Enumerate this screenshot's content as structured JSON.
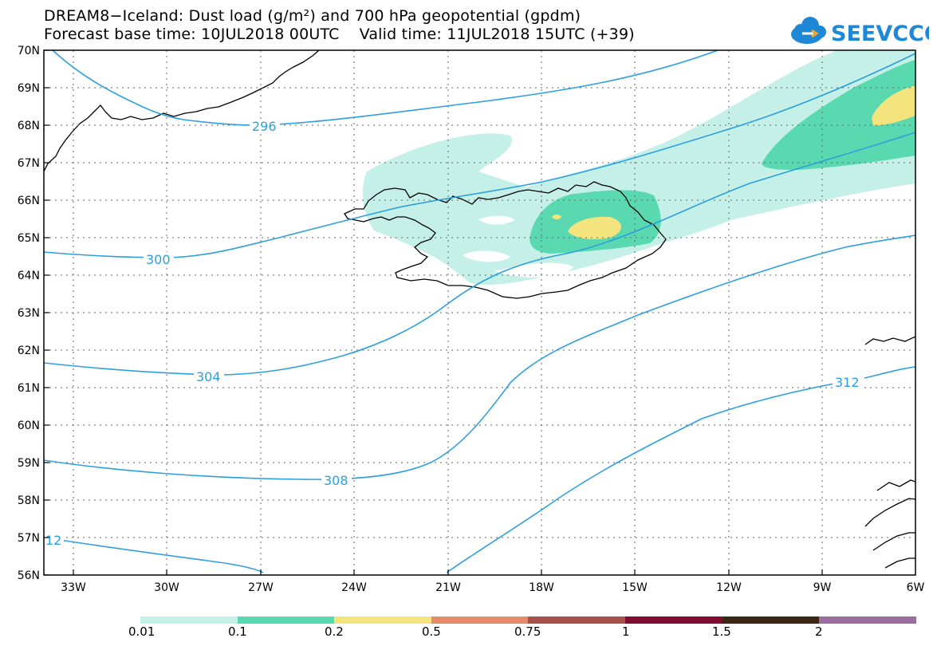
{
  "title_line1": "DREAM8−Iceland: Dust load (g/m²) and 700 hPa geopotential (gpdm)",
  "title_line2": "Forecast base time: 10JUL2018 00UTC    Valid time: 11JUL2018 15UTC (+39)",
  "logo_text": "SEEVCCC",
  "lat_labels": [
    "70N",
    "69N",
    "68N",
    "67N",
    "66N",
    "65N",
    "64N",
    "63N",
    "62N",
    "61N",
    "60N",
    "59N",
    "58N",
    "57N",
    "56N"
  ],
  "lon_labels": [
    "33W",
    "30W",
    "27W",
    "24W",
    "21W",
    "18W",
    "15W",
    "12W",
    "9W",
    "6W"
  ],
  "contour_labels": [
    "296",
    "300",
    "304",
    "308",
    "312",
    "12"
  ],
  "colorbar": {
    "colors": [
      "#c4f0e8",
      "#5ad9b0",
      "#f4e47e",
      "#e8896a",
      "#a8504c",
      "#800c30",
      "#3a2612",
      "#9a6fa0"
    ],
    "ticks": [
      "0.01",
      "0.1",
      "0.2",
      "0.5",
      "0.75",
      "1",
      "1.5",
      "2"
    ]
  },
  "colors": {
    "contour": "#2d9fe0",
    "logo": "#1e88d6"
  }
}
